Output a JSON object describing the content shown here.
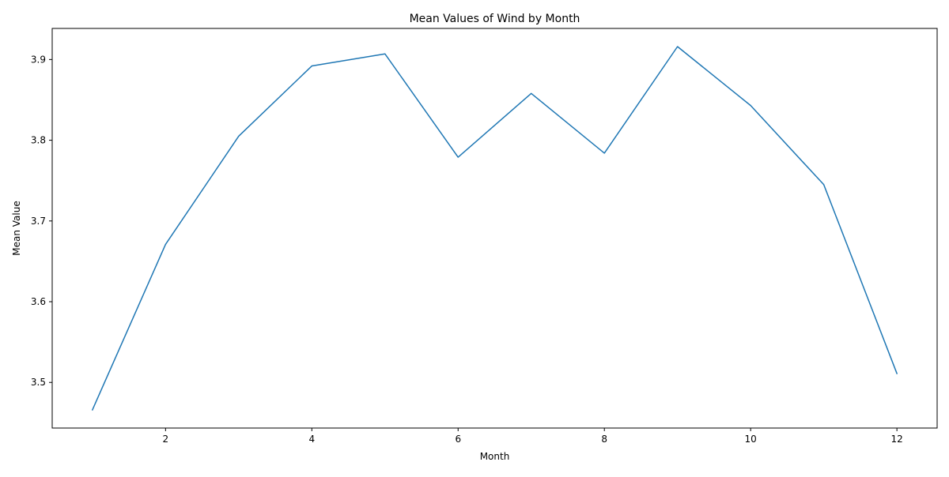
{
  "chart_data": {
    "type": "line",
    "title": "Mean Values of Wind by Month",
    "xlabel": "Month",
    "ylabel": "Mean Value",
    "x": [
      1,
      2,
      3,
      4,
      5,
      6,
      7,
      8,
      9,
      10,
      11,
      12
    ],
    "series": [
      {
        "name": "Wind",
        "color": "#1f77b4",
        "values": [
          3.466,
          3.671,
          3.805,
          3.892,
          3.907,
          3.779,
          3.858,
          3.784,
          3.916,
          3.843,
          3.745,
          3.511
        ]
      }
    ],
    "xlim": [
      0.45,
      12.55
    ],
    "ylim": [
      3.4435,
      3.9385
    ],
    "xticks": [
      2,
      4,
      6,
      8,
      10,
      12
    ],
    "xtick_labels": [
      "2",
      "4",
      "6",
      "8",
      "10",
      "12"
    ],
    "yticks": [
      3.5,
      3.6,
      3.7,
      3.8,
      3.9
    ],
    "ytick_labels": [
      "3.5",
      "3.6",
      "3.7",
      "3.8",
      "3.9"
    ],
    "grid": false,
    "legend": "none"
  }
}
